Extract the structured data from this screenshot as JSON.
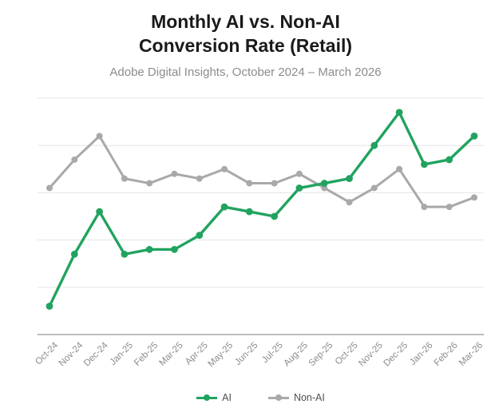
{
  "header": {
    "title_line1": "Monthly AI vs. Non-AI",
    "title_line2": "Conversion Rate (Retail)",
    "subtitle": "Adobe Digital Insights, October 2024 – March 2026"
  },
  "legend": {
    "items": [
      {
        "label": "AI",
        "color": "#21a35f"
      },
      {
        "label": "Non-AI",
        "color": "#a9a9a9"
      }
    ]
  },
  "colors": {
    "gridline": "#e5e5e5",
    "axis_line": "#bdbdbd",
    "tick_label": "#8c8c8c",
    "title": "#1a1a1a",
    "subtitle": "#8c8c8c",
    "ai_green": "#21a35f",
    "non_ai_gray": "#a9a9a9"
  },
  "chart_data": {
    "type": "line",
    "title": "Monthly AI vs. Non-AI Conversion Rate (Retail)",
    "subtitle": "Adobe Digital Insights, October 2024 – March 2026",
    "categories": [
      "Oct-24",
      "Nov-24",
      "Dec-24",
      "Jan-25",
      "Feb-25",
      "Mar-25",
      "Apr-25",
      "May-25",
      "Jun-25",
      "Jul-25",
      "Aug-25",
      "Sep-25",
      "Oct-25",
      "Nov-25",
      "Dec-25",
      "Jan-26",
      "Feb-26",
      "Mar-26"
    ],
    "series": [
      {
        "name": "AI",
        "color": "#21a35f",
        "stroke_width": 3.4,
        "marker_radius": 4.4,
        "values": [
          0.6,
          1.7,
          2.6,
          1.7,
          1.8,
          1.8,
          2.1,
          2.7,
          2.6,
          2.5,
          3.1,
          3.2,
          3.3,
          4.0,
          4.7,
          3.6,
          3.7,
          4.2
        ]
      },
      {
        "name": "Non-AI",
        "color": "#a9a9a9",
        "stroke_width": 3.0,
        "marker_radius": 4.0,
        "values": [
          3.1,
          3.7,
          4.2,
          3.3,
          3.2,
          3.4,
          3.3,
          3.5,
          3.2,
          3.2,
          3.4,
          3.1,
          2.8,
          3.1,
          3.5,
          2.7,
          2.7,
          2.9
        ]
      }
    ],
    "xlabel": "",
    "ylabel": "",
    "ylim": [
      0,
      5
    ],
    "y_gridline_interval": 1,
    "y_axis_labels_visible": false,
    "grid": true,
    "legend_position": "bottom",
    "x_tick_rotation": -45
  }
}
